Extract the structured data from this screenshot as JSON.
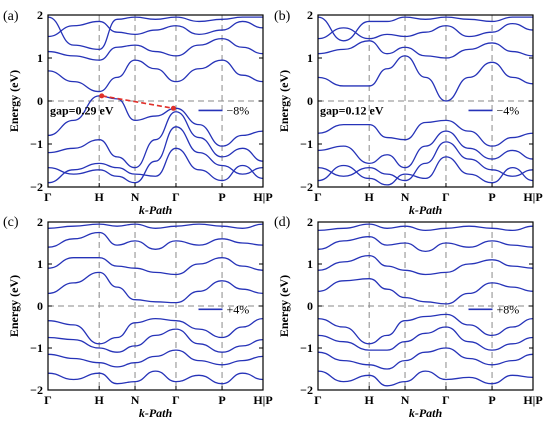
{
  "chart_data": [
    {
      "type": "line",
      "panel_label": "(a)",
      "ylabel": "Energy (eV)",
      "xlabel": "k-Path",
      "ylim": [
        -2,
        2
      ],
      "yticks": [
        -2,
        -1,
        0,
        1,
        2
      ],
      "ytick_labels": [
        "−2",
        "−1",
        "0",
        "1",
        "2"
      ],
      "x_ticks": [
        "Γ",
        "H",
        "N",
        "Γ",
        "P",
        "H|P"
      ],
      "x_tick_positions": [
        0,
        1,
        1.7,
        2.5,
        3.4,
        4.2
      ],
      "fermi_level": 0,
      "legend": {
        "label": "−8%",
        "placement": "right",
        "color": "#2633b8"
      },
      "annotation": {
        "text": "gap=0.29 eV",
        "from": [
          1.05,
          0.12
        ],
        "to": [
          2.45,
          -0.17
        ],
        "arrow_color": "#e0302a"
      },
      "line_color": "#2633b8",
      "series": [
        {
          "x": [
            0,
            0.5,
            1,
            1.35,
            1.7,
            2.1,
            2.5,
            2.95,
            3.4,
            3.8,
            4.2
          ],
          "y": [
            -0.8,
            -0.45,
            0.12,
            0.05,
            -0.45,
            -0.35,
            -0.17,
            -0.55,
            -1.05,
            -0.8,
            -0.7
          ]
        },
        {
          "x": [
            0,
            0.5,
            1,
            1.35,
            1.7,
            2.1,
            2.5,
            2.95,
            3.4,
            3.8,
            4.2
          ],
          "y": [
            -1.2,
            -1.1,
            -0.9,
            -1.3,
            -1.55,
            -0.9,
            -0.25,
            -0.85,
            -1.3,
            -1.1,
            -1.4
          ]
        },
        {
          "x": [
            0,
            0.5,
            1,
            1.35,
            1.7,
            2.1,
            2.5,
            2.95,
            3.4,
            3.8,
            4.2
          ],
          "y": [
            -1.55,
            -1.7,
            -1.6,
            -1.75,
            -1.9,
            -1.4,
            -0.6,
            -1.2,
            -1.5,
            -1.7,
            -1.55
          ]
        },
        {
          "x": [
            0,
            0.5,
            1,
            1.35,
            1.7,
            2.1,
            2.5,
            2.95,
            3.4,
            3.8,
            4.2
          ],
          "y": [
            -1.9,
            -1.6,
            -1.45,
            -1.55,
            -1.7,
            -1.75,
            -1.1,
            -1.6,
            -1.85,
            -1.5,
            -1.8
          ]
        },
        {
          "x": [
            0,
            0.5,
            1,
            1.35,
            1.7,
            2.1,
            2.5,
            2.95,
            3.4,
            3.8,
            4.2
          ],
          "y": [
            0.7,
            0.45,
            0.22,
            0.55,
            0.95,
            0.75,
            0.45,
            0.75,
            0.95,
            0.6,
            0.45
          ]
        },
        {
          "x": [
            0,
            0.5,
            1,
            1.35,
            1.7,
            2.1,
            2.5,
            2.95,
            3.4,
            3.8,
            4.2
          ],
          "y": [
            1.15,
            1.05,
            0.95,
            1.25,
            1.3,
            1.15,
            1.05,
            1.3,
            1.45,
            1.25,
            1.1
          ]
        },
        {
          "x": [
            0,
            0.5,
            1,
            1.35,
            1.7,
            2.1,
            2.5,
            2.95,
            3.4,
            3.8,
            4.2
          ],
          "y": [
            1.5,
            1.75,
            1.85,
            1.6,
            1.55,
            1.65,
            1.75,
            1.55,
            1.65,
            1.85,
            1.7
          ]
        },
        {
          "x": [
            0,
            0.5,
            1,
            1.35,
            1.7,
            2.1,
            2.5,
            2.95,
            3.4,
            3.8,
            4.2
          ],
          "y": [
            1.95,
            1.3,
            1.2,
            1.9,
            1.95,
            1.9,
            1.95,
            1.85,
            1.9,
            1.95,
            1.95
          ]
        }
      ]
    },
    {
      "type": "line",
      "panel_label": "(b)",
      "ylabel": "Energy (eV)",
      "xlabel": "k-Path",
      "ylim": [
        -2,
        2
      ],
      "yticks": [
        -2,
        -1,
        0,
        1,
        2
      ],
      "ytick_labels": [
        "−2",
        "−1",
        "0",
        "1",
        "2"
      ],
      "x_ticks": [
        "Γ",
        "H",
        "N",
        "Γ",
        "P",
        "H|P"
      ],
      "x_tick_positions": [
        0,
        1,
        1.7,
        2.5,
        3.4,
        4.2
      ],
      "fermi_level": 0,
      "legend": {
        "label": "−4%",
        "placement": "right",
        "color": "#2633b8"
      },
      "annotation": {
        "text": "gap=0.12 eV",
        "from": null,
        "to": null,
        "arrow_color": null
      },
      "line_color": "#2633b8",
      "series": [
        {
          "x": [
            0,
            0.5,
            1,
            1.35,
            1.7,
            2.1,
            2.5,
            2.95,
            3.4,
            3.8,
            4.2
          ],
          "y": [
            -0.75,
            -0.55,
            -0.55,
            -0.85,
            -0.9,
            -0.5,
            -0.45,
            -0.7,
            -1.05,
            -0.85,
            -0.75
          ]
        },
        {
          "x": [
            0,
            0.5,
            1,
            1.35,
            1.7,
            2.1,
            2.5,
            2.95,
            3.4,
            3.8,
            4.2
          ],
          "y": [
            -1.15,
            -1.05,
            -1.45,
            -1.25,
            -1.55,
            -1.05,
            -0.7,
            -1.1,
            -1.35,
            -1.15,
            -1.35
          ]
        },
        {
          "x": [
            0,
            0.5,
            1,
            1.35,
            1.7,
            2.1,
            2.5,
            2.95,
            3.4,
            3.8,
            4.2
          ],
          "y": [
            -1.55,
            -1.75,
            -1.55,
            -1.7,
            -1.85,
            -1.45,
            -0.95,
            -1.35,
            -1.6,
            -1.75,
            -1.6
          ]
        },
        {
          "x": [
            0,
            0.5,
            1,
            1.35,
            1.7,
            2.1,
            2.5,
            2.95,
            3.4,
            3.8,
            4.2
          ],
          "y": [
            -1.85,
            -1.5,
            -1.8,
            -1.95,
            -1.7,
            -1.8,
            -1.3,
            -1.7,
            -1.9,
            -1.55,
            -1.85
          ]
        },
        {
          "x": [
            0,
            0.5,
            1,
            1.35,
            1.7,
            2.1,
            2.5,
            2.95,
            3.4,
            3.8,
            4.2
          ],
          "y": [
            0.55,
            0.35,
            0.35,
            0.75,
            1.05,
            0.55,
            0.0,
            0.55,
            0.9,
            0.55,
            0.4
          ]
        },
        {
          "x": [
            0,
            0.5,
            1,
            1.35,
            1.7,
            2.1,
            2.5,
            2.95,
            3.4,
            3.8,
            4.2
          ],
          "y": [
            1.1,
            1.2,
            1.4,
            1.1,
            1.25,
            1.05,
            1.0,
            1.2,
            1.35,
            1.15,
            1.05
          ]
        },
        {
          "x": [
            0,
            0.5,
            1,
            1.35,
            1.7,
            2.1,
            2.5,
            2.95,
            3.4,
            3.8,
            4.2
          ],
          "y": [
            1.45,
            1.7,
            1.45,
            1.55,
            1.5,
            1.6,
            1.75,
            1.5,
            1.6,
            1.8,
            1.65
          ]
        },
        {
          "x": [
            0,
            0.5,
            1,
            1.35,
            1.7,
            2.1,
            2.5,
            2.95,
            3.4,
            3.8,
            4.2
          ],
          "y": [
            1.95,
            1.4,
            1.85,
            1.85,
            1.95,
            1.9,
            1.95,
            1.9,
            1.85,
            1.95,
            1.95
          ]
        }
      ]
    },
    {
      "type": "line",
      "panel_label": "(c)",
      "ylabel": "Energy (eV)",
      "xlabel": "k-Path",
      "ylim": [
        -2,
        2
      ],
      "yticks": [
        -2,
        -1,
        0,
        1,
        2
      ],
      "ytick_labels": [
        "−2",
        "−1",
        "0",
        "1",
        "2"
      ],
      "x_ticks": [
        "Γ",
        "H",
        "N",
        "Γ",
        "P",
        "H|P"
      ],
      "x_tick_positions": [
        0,
        1,
        1.7,
        2.5,
        3.4,
        4.2
      ],
      "fermi_level": 0,
      "legend": {
        "label": "+4%",
        "placement": "right",
        "color": "#2633b8"
      },
      "annotation": null,
      "line_color": "#2633b8",
      "series": [
        {
          "x": [
            0,
            0.5,
            1,
            1.35,
            1.7,
            2.1,
            2.5,
            2.95,
            3.4,
            3.8,
            4.2
          ],
          "y": [
            -0.35,
            -0.45,
            -0.9,
            -0.75,
            -0.4,
            -0.3,
            -0.35,
            -0.55,
            -0.75,
            -0.5,
            -0.3
          ]
        },
        {
          "x": [
            0,
            0.5,
            1,
            1.35,
            1.7,
            2.1,
            2.5,
            2.95,
            3.4,
            3.8,
            4.2
          ],
          "y": [
            -0.75,
            -0.8,
            -1.0,
            -1.1,
            -0.95,
            -0.7,
            -0.55,
            -0.9,
            -1.1,
            -0.95,
            -0.8
          ]
        },
        {
          "x": [
            0,
            0.5,
            1,
            1.35,
            1.7,
            2.1,
            2.5,
            2.95,
            3.4,
            3.8,
            4.2
          ],
          "y": [
            -1.15,
            -1.25,
            -1.35,
            -1.45,
            -1.35,
            -1.2,
            -1.05,
            -1.3,
            -1.4,
            -1.3,
            -1.2
          ]
        },
        {
          "x": [
            0,
            0.5,
            1,
            1.35,
            1.7,
            2.1,
            2.5,
            2.95,
            3.4,
            3.8,
            4.2
          ],
          "y": [
            -1.6,
            -1.75,
            -1.6,
            -1.85,
            -1.8,
            -1.55,
            -1.8,
            -1.65,
            -1.85,
            -1.6,
            -1.75
          ]
        },
        {
          "x": [
            0,
            0.5,
            1,
            1.35,
            1.7,
            2.1,
            2.5,
            2.95,
            3.4,
            3.8,
            4.2
          ],
          "y": [
            0.3,
            0.55,
            0.8,
            0.45,
            0.15,
            0.1,
            0.08,
            0.35,
            0.6,
            0.4,
            0.3
          ]
        },
        {
          "x": [
            0,
            0.5,
            1,
            1.35,
            1.7,
            2.1,
            2.5,
            2.95,
            3.4,
            3.8,
            4.2
          ],
          "y": [
            0.9,
            1.15,
            1.15,
            0.95,
            0.9,
            0.8,
            0.75,
            1.0,
            1.15,
            0.95,
            0.85
          ]
        },
        {
          "x": [
            0,
            0.5,
            1,
            1.35,
            1.7,
            2.1,
            2.5,
            2.95,
            3.4,
            3.8,
            4.2
          ],
          "y": [
            1.4,
            1.6,
            1.75,
            1.45,
            1.55,
            1.35,
            1.55,
            1.45,
            1.6,
            1.5,
            1.45
          ]
        },
        {
          "x": [
            0,
            0.5,
            1,
            1.35,
            1.7,
            2.1,
            2.5,
            2.95,
            3.4,
            3.8,
            4.2
          ],
          "y": [
            1.85,
            1.9,
            1.95,
            1.9,
            1.95,
            1.85,
            1.9,
            1.95,
            1.9,
            1.85,
            1.95
          ]
        }
      ]
    },
    {
      "type": "line",
      "panel_label": "(d)",
      "ylabel": "Energy (eV)",
      "xlabel": "k-Path",
      "ylim": [
        -2,
        2
      ],
      "yticks": [
        -2,
        -1,
        0,
        1,
        2
      ],
      "ytick_labels": [
        "−2",
        "−1",
        "0",
        "1",
        "2"
      ],
      "x_ticks": [
        "Γ",
        "H",
        "N",
        "Γ",
        "P",
        "H|P"
      ],
      "x_tick_positions": [
        0,
        1,
        1.7,
        2.5,
        3.4,
        4.2
      ],
      "fermi_level": 0,
      "legend": {
        "label": "+8%",
        "placement": "right",
        "color": "#2633b8"
      },
      "annotation": null,
      "line_color": "#2633b8",
      "series": [
        {
          "x": [
            0,
            0.5,
            1,
            1.35,
            1.7,
            2.1,
            2.5,
            2.95,
            3.4,
            3.8,
            4.2
          ],
          "y": [
            -0.3,
            -0.5,
            -0.9,
            -0.7,
            -0.35,
            -0.25,
            -0.2,
            -0.45,
            -0.7,
            -0.5,
            -0.3
          ]
        },
        {
          "x": [
            0,
            0.5,
            1,
            1.35,
            1.7,
            2.1,
            2.5,
            2.95,
            3.4,
            3.8,
            4.2
          ],
          "y": [
            -0.7,
            -0.85,
            -1.05,
            -1.05,
            -0.85,
            -0.65,
            -0.5,
            -0.85,
            -1.05,
            -0.9,
            -0.75
          ]
        },
        {
          "x": [
            0,
            0.5,
            1,
            1.35,
            1.7,
            2.1,
            2.5,
            2.95,
            3.4,
            3.8,
            4.2
          ],
          "y": [
            -1.1,
            -1.3,
            -1.4,
            -1.5,
            -1.3,
            -1.1,
            -1.0,
            -1.25,
            -1.4,
            -1.3,
            -1.15
          ]
        },
        {
          "x": [
            0,
            0.5,
            1,
            1.35,
            1.7,
            2.1,
            2.5,
            2.95,
            3.4,
            3.8,
            4.2
          ],
          "y": [
            -1.55,
            -1.8,
            -1.65,
            -1.9,
            -1.8,
            -1.55,
            -1.75,
            -1.7,
            -1.85,
            -1.65,
            -1.7
          ]
        },
        {
          "x": [
            0,
            0.5,
            1,
            1.35,
            1.7,
            2.1,
            2.5,
            2.95,
            3.4,
            3.8,
            4.2
          ],
          "y": [
            0.35,
            0.6,
            0.65,
            0.4,
            0.2,
            0.1,
            0.05,
            0.3,
            0.55,
            0.45,
            0.35
          ]
        },
        {
          "x": [
            0,
            0.5,
            1,
            1.35,
            1.7,
            2.1,
            2.5,
            2.95,
            3.4,
            3.8,
            4.2
          ],
          "y": [
            0.85,
            1.05,
            1.2,
            0.95,
            0.85,
            0.75,
            0.8,
            1.0,
            1.1,
            0.95,
            0.9
          ]
        },
        {
          "x": [
            0,
            0.5,
            1,
            1.35,
            1.7,
            2.1,
            2.5,
            2.95,
            3.4,
            3.8,
            4.2
          ],
          "y": [
            1.35,
            1.55,
            1.65,
            1.45,
            1.5,
            1.3,
            1.5,
            1.4,
            1.55,
            1.45,
            1.4
          ]
        },
        {
          "x": [
            0,
            0.5,
            1,
            1.35,
            1.7,
            2.1,
            2.5,
            2.95,
            3.4,
            3.8,
            4.2
          ],
          "y": [
            1.8,
            1.85,
            1.95,
            1.85,
            1.9,
            1.8,
            1.85,
            1.9,
            1.85,
            1.8,
            1.9
          ]
        }
      ]
    }
  ]
}
